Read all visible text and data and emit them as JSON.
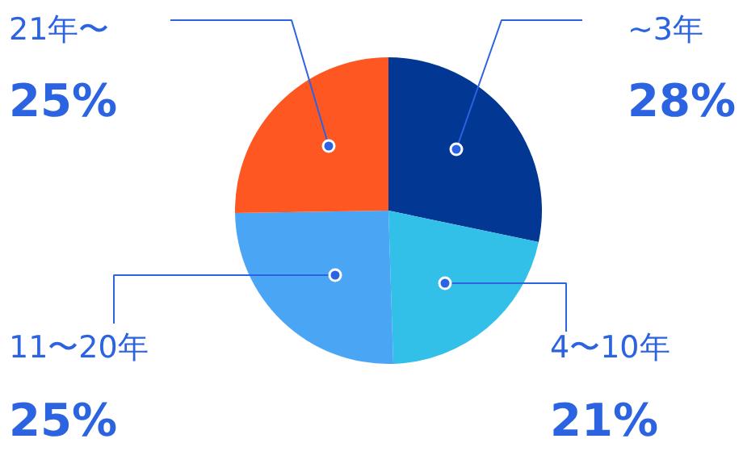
{
  "chart_data": {
    "type": "pie",
    "categories": [
      "~3年",
      "4〜10年",
      "11〜20年",
      "21年〜"
    ],
    "values": [
      28,
      21,
      25,
      25
    ],
    "colors": [
      "#023894",
      "#33c0e8",
      "#4aa6f5",
      "#ff5722"
    ],
    "value_labels": [
      "28%",
      "21%",
      "25%",
      "25%"
    ]
  }
}
